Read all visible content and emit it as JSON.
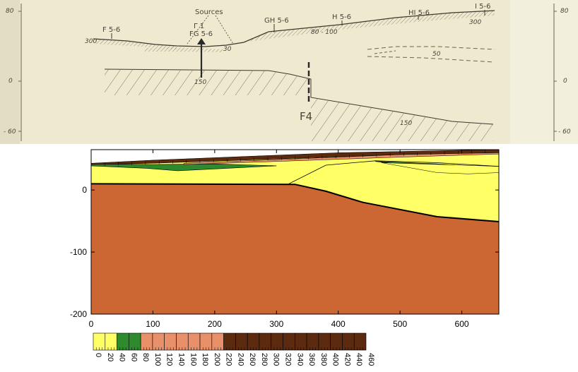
{
  "sketch": {
    "sources_label": "Sources",
    "wells": [
      "F 5-6",
      "Γ 1",
      "FG 5-6",
      "GH 5-6",
      "H 5-6",
      "HI 5-6",
      "I 5-6"
    ],
    "fault_label": "F4",
    "elevation_ticks_left": [
      "80",
      "0",
      "- 60"
    ],
    "elevation_ticks_right": [
      "80",
      "0",
      "- 60"
    ],
    "thickness_notes": [
      "300",
      "300",
      "80 - 100",
      "30",
      "50",
      "150",
      "150"
    ]
  },
  "chart_data": {
    "type": "diagram",
    "x_ticks": [
      0,
      100,
      200,
      300,
      400,
      500,
      600
    ],
    "y_ticks": [
      0,
      -100,
      -200
    ],
    "xlim": [
      0,
      660
    ],
    "ylim": [
      -200,
      65
    ],
    "colorbar": {
      "ticks": [
        "0",
        "20",
        "40",
        "60",
        "80",
        "100",
        "120",
        "140",
        "160",
        "180",
        "200",
        "220",
        "240",
        "260",
        "280",
        "300",
        "320",
        "340",
        "360",
        "380",
        "400",
        "420",
        "440",
        "460"
      ],
      "colors": [
        "#ffff66",
        "#ffff66",
        "#2d8a2d",
        "#2d8a2d",
        "#e8906a",
        "#e8906a",
        "#e8906a",
        "#e8906a",
        "#e8906a",
        "#e8906a",
        "#e8906a",
        "#5c2a0e",
        "#5c2a0e",
        "#5c2a0e",
        "#5c2a0e",
        "#5c2a0e",
        "#5c2a0e",
        "#5c2a0e",
        "#5c2a0e",
        "#5c2a0e",
        "#5c2a0e",
        "#5c2a0e",
        "#5c2a0e"
      ]
    },
    "colors": {
      "basement": "#cc6633",
      "aquifer": "#ffff66",
      "lens": "#2d8a2d",
      "surface_cells": "#e8906a",
      "dark_cells": "#5c2a0e"
    }
  }
}
